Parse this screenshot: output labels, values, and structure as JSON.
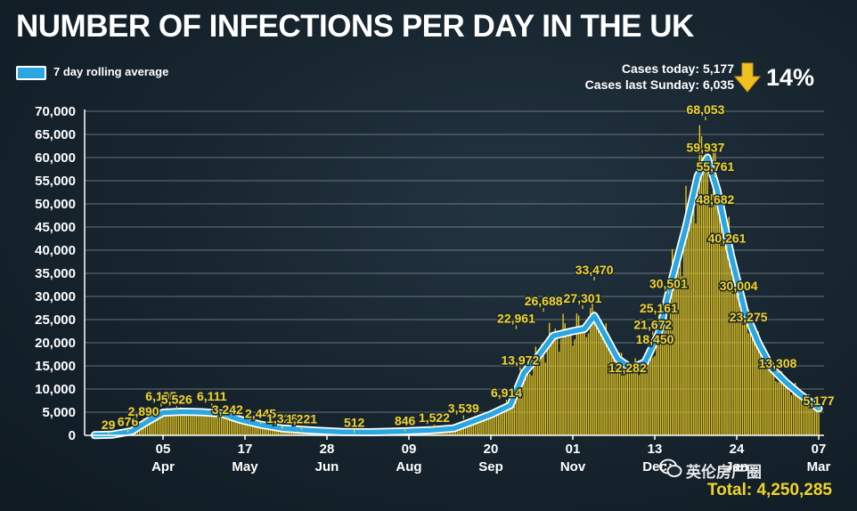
{
  "chart_data": {
    "type": "bar",
    "title": "NUMBER OF INFECTIONS PER DAY IN THE UK",
    "legend": {
      "label": "7 day rolling average",
      "color": "#2aa7e0",
      "placement": "top-left"
    },
    "xlabel": "",
    "ylabel": "",
    "ylim": [
      0,
      70000
    ],
    "yticks": [
      "0",
      "5,000",
      "10,000",
      "15,000",
      "20,000",
      "25,000",
      "30,000",
      "35,000",
      "40,000",
      "45,000",
      "50,000",
      "55,000",
      "60,000",
      "65,000",
      "70,000"
    ],
    "grid": true,
    "bar_color": "#e6c61e",
    "x_ticks": [
      {
        "day": "05",
        "month": "Apr",
        "date": "2020-04-05"
      },
      {
        "day": "17",
        "month": "May",
        "date": "2020-05-17"
      },
      {
        "day": "28",
        "month": "Jun",
        "date": "2020-06-28"
      },
      {
        "day": "09",
        "month": "Aug",
        "date": "2020-08-09"
      },
      {
        "day": "20",
        "month": "Sep",
        "date": "2020-09-20"
      },
      {
        "day": "01",
        "month": "Nov",
        "date": "2020-11-01"
      },
      {
        "day": "13",
        "month": "Dec",
        "date": "2020-12-13"
      },
      {
        "day": "24",
        "month": "Jan",
        "date": "2021-01-24"
      },
      {
        "day": "07",
        "month": "Mar",
        "date": "2021-03-07"
      }
    ],
    "rolling_average": [
      {
        "date": "2020-03-01",
        "value": 40
      },
      {
        "date": "2020-03-10",
        "value": 150
      },
      {
        "date": "2020-03-20",
        "value": 900
      },
      {
        "date": "2020-03-28",
        "value": 3000
      },
      {
        "date": "2020-04-05",
        "value": 4900
      },
      {
        "date": "2020-04-15",
        "value": 5100
      },
      {
        "date": "2020-04-25",
        "value": 5000
      },
      {
        "date": "2020-05-05",
        "value": 4700
      },
      {
        "date": "2020-05-15",
        "value": 3300
      },
      {
        "date": "2020-05-25",
        "value": 2300
      },
      {
        "date": "2020-06-05",
        "value": 1500
      },
      {
        "date": "2020-06-20",
        "value": 1050
      },
      {
        "date": "2020-07-05",
        "value": 750
      },
      {
        "date": "2020-07-20",
        "value": 680
      },
      {
        "date": "2020-08-05",
        "value": 850
      },
      {
        "date": "2020-08-20",
        "value": 1100
      },
      {
        "date": "2020-09-01",
        "value": 1500
      },
      {
        "date": "2020-09-10",
        "value": 2900
      },
      {
        "date": "2020-09-20",
        "value": 4500
      },
      {
        "date": "2020-09-30",
        "value": 6500
      },
      {
        "date": "2020-10-07",
        "value": 13500
      },
      {
        "date": "2020-10-15",
        "value": 17500
      },
      {
        "date": "2020-10-22",
        "value": 21500
      },
      {
        "date": "2020-11-01",
        "value": 22500
      },
      {
        "date": "2020-11-07",
        "value": 23000
      },
      {
        "date": "2020-11-12",
        "value": 25800
      },
      {
        "date": "2020-11-17",
        "value": 22000
      },
      {
        "date": "2020-11-24",
        "value": 16500
      },
      {
        "date": "2020-12-01",
        "value": 14500
      },
      {
        "date": "2020-12-08",
        "value": 15800
      },
      {
        "date": "2020-12-15",
        "value": 22000
      },
      {
        "date": "2020-12-22",
        "value": 34000
      },
      {
        "date": "2020-12-29",
        "value": 45000
      },
      {
        "date": "2021-01-04",
        "value": 56000
      },
      {
        "date": "2021-01-09",
        "value": 60000
      },
      {
        "date": "2021-01-14",
        "value": 53000
      },
      {
        "date": "2021-01-21",
        "value": 39000
      },
      {
        "date": "2021-01-28",
        "value": 27000
      },
      {
        "date": "2021-02-04",
        "value": 20000
      },
      {
        "date": "2021-02-11",
        "value": 14500
      },
      {
        "date": "2021-02-18",
        "value": 11500
      },
      {
        "date": "2021-02-25",
        "value": 9000
      },
      {
        "date": "2021-03-04",
        "value": 6800
      },
      {
        "date": "2021-03-07",
        "value": 5800
      }
    ],
    "labels": [
      {
        "date": "2020-03-08",
        "value": 29,
        "text": "29"
      },
      {
        "date": "2020-03-18",
        "value": 676,
        "text": "676"
      },
      {
        "date": "2020-03-26",
        "value": 2890,
        "text": "2,890"
      },
      {
        "date": "2020-04-04",
        "value": 6195,
        "text": "6,195"
      },
      {
        "date": "2020-04-12",
        "value": 5526,
        "text": "5,526"
      },
      {
        "date": "2020-04-30",
        "value": 6111,
        "text": "6,111"
      },
      {
        "date": "2020-05-08",
        "value": 3242,
        "text": "3,242"
      },
      {
        "date": "2020-05-25",
        "value": 2445,
        "text": "2,445"
      },
      {
        "date": "2020-06-05",
        "value": 1326,
        "text": "1,326"
      },
      {
        "date": "2020-06-15",
        "value": 1221,
        "text": "1,221"
      },
      {
        "date": "2020-07-12",
        "value": 512,
        "text": "512"
      },
      {
        "date": "2020-08-07",
        "value": 846,
        "text": "846"
      },
      {
        "date": "2020-08-22",
        "value": 1522,
        "text": "1,522"
      },
      {
        "date": "2020-09-06",
        "value": 3539,
        "text": "3,539"
      },
      {
        "date": "2020-09-28",
        "value": 6914,
        "text": "6,914"
      },
      {
        "date": "2020-10-05",
        "value": 13972,
        "text": "13,972"
      },
      {
        "date": "2020-10-03",
        "value": 22961,
        "text": "22,961"
      },
      {
        "date": "2020-10-17",
        "value": 26688,
        "text": "26,688"
      },
      {
        "date": "2020-11-06",
        "value": 27301,
        "text": "27,301"
      },
      {
        "date": "2020-11-12",
        "value": 33470,
        "text": "33,470"
      },
      {
        "date": "2020-11-29",
        "value": 12282,
        "text": "12,282"
      },
      {
        "date": "2020-12-13",
        "value": 18450,
        "text": "18,450"
      },
      {
        "date": "2020-12-12",
        "value": 21672,
        "text": "21,672"
      },
      {
        "date": "2020-12-15",
        "value": 25161,
        "text": "25,161"
      },
      {
        "date": "2020-12-20",
        "value": 30501,
        "text": "30,501"
      },
      {
        "date": "2021-01-08",
        "value": 59937,
        "text": "59,937"
      },
      {
        "date": "2021-01-08",
        "value": 68053,
        "text": "68,053"
      },
      {
        "date": "2021-01-13",
        "value": 55761,
        "text": "55,761"
      },
      {
        "date": "2021-01-13",
        "value": 48682,
        "text": "48,682"
      },
      {
        "date": "2021-01-19",
        "value": 40261,
        "text": "40,261"
      },
      {
        "date": "2021-01-25",
        "value": 30004,
        "text": "30,004"
      },
      {
        "date": "2021-01-30",
        "value": 23275,
        "text": "23,275"
      },
      {
        "date": "2021-02-14",
        "value": 13308,
        "text": "13,308"
      },
      {
        "date": "2021-03-07",
        "value": 5177,
        "text": "5,177"
      }
    ]
  },
  "stats": {
    "cases_today_label": "Cases today:",
    "cases_today_value": "5,177",
    "cases_last_sunday_label": "Cases last Sunday:",
    "cases_last_sunday_value": "6,035",
    "change_percent": "14%",
    "change_direction": "down",
    "arrow_color": "#f0c020"
  },
  "total": "Total: 4,250,285",
  "watermark": "英伦房产圈",
  "background_color": "#182630",
  "label_color": "#f0d428"
}
